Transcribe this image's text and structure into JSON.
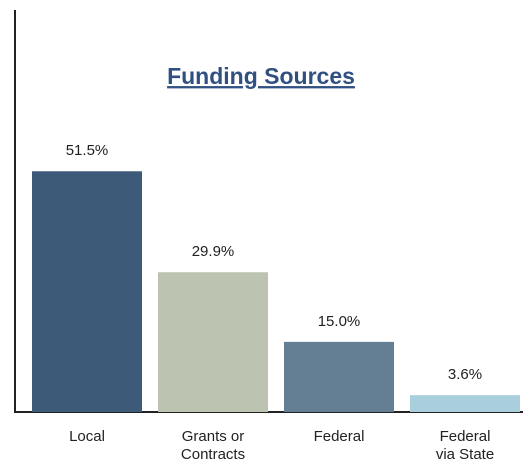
{
  "chart_data": {
    "type": "bar",
    "title": "Funding Sources",
    "categories": [
      "Local",
      "Grants or Contracts",
      "Federal",
      "Federal via State"
    ],
    "values": [
      51.5,
      29.9,
      15.0,
      3.6
    ],
    "value_labels": [
      "51.5%",
      "29.9%",
      "15.0%",
      "3.6%"
    ],
    "colors": [
      "#3d5a78",
      "#bcc4b1",
      "#647f94",
      "#a9cfdd"
    ],
    "ylim": [
      0,
      86
    ]
  }
}
